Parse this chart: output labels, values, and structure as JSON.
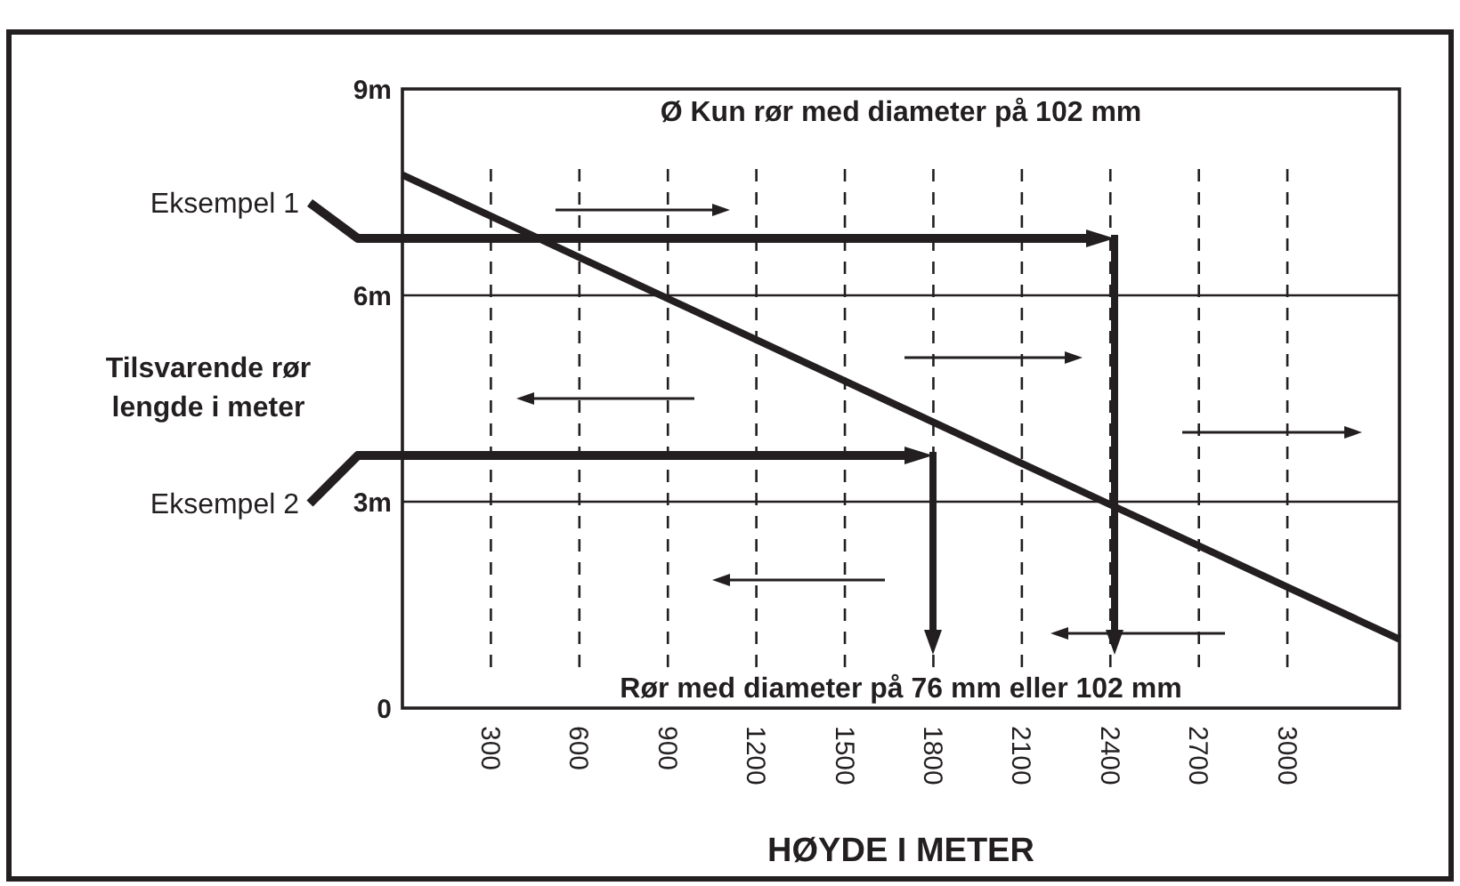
{
  "chart_data": {
    "type": "line",
    "xlabel": "HØYDE I METER",
    "ylabel": "Tilsvarende rør lengde i meter",
    "xlim": [
      0,
      3380
    ],
    "ylim": [
      0,
      9
    ],
    "xticks": [
      300,
      600,
      900,
      1200,
      1500,
      1800,
      2100,
      2400,
      2700,
      3000
    ],
    "yticks": [
      0,
      {
        "value": 3,
        "label": "3m"
      },
      {
        "value": 6,
        "label": "6m"
      },
      {
        "value": 9,
        "label": "9m"
      }
    ],
    "grid": true,
    "annotations": [
      "Ø Kun rør med diameter på 102 mm",
      "Rør med diameter på 76 mm eller 102 mm",
      "Eksempel 1",
      "Eksempel 2"
    ],
    "series": [
      {
        "color": "#231f20",
        "x": [
          0,
          3380
        ],
        "values": [
          7.75,
          1.0
        ]
      }
    ]
  }
}
